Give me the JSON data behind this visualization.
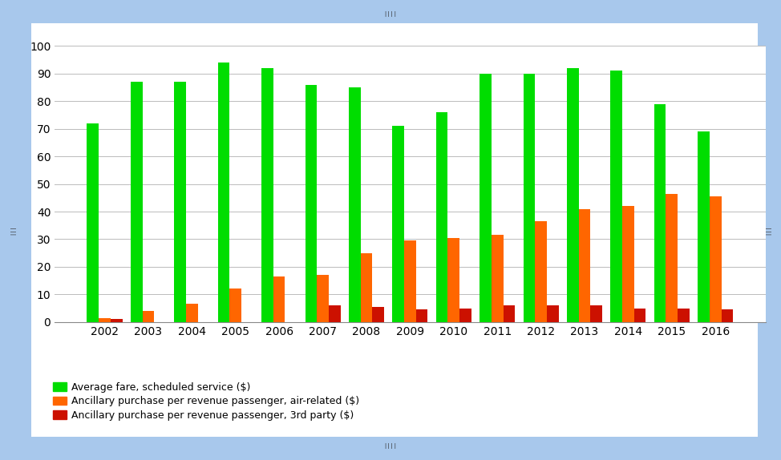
{
  "years": [
    2002,
    2003,
    2004,
    2005,
    2006,
    2007,
    2008,
    2009,
    2010,
    2011,
    2012,
    2013,
    2014,
    2015,
    2016
  ],
  "avg_fare": [
    72,
    87,
    87,
    94,
    92,
    86,
    85,
    71,
    76,
    90,
    90,
    92,
    91,
    79,
    69
  ],
  "air_related": [
    1.5,
    4,
    6.5,
    12,
    16.5,
    17,
    25,
    29.5,
    30.5,
    31.5,
    36.5,
    41,
    42,
    46.5,
    45.5
  ],
  "third_party": [
    1,
    0,
    0,
    0,
    0,
    6,
    5.5,
    4.5,
    5,
    6,
    6,
    6,
    5,
    5,
    4.5
  ],
  "green_color": "#00DD00",
  "orange_color": "#FF6600",
  "red_color": "#CC1100",
  "bg_outer": "#A8C8EC",
  "bg_inner": "#FFFFFF",
  "ylim": [
    0,
    100
  ],
  "yticks": [
    0,
    10,
    20,
    30,
    40,
    50,
    60,
    70,
    80,
    90,
    100
  ],
  "legend_labels": [
    "Average fare, scheduled service ($)",
    "Ancillary purchase per revenue passenger, air-related ($)",
    "Ancillary purchase per revenue passenger, 3rd party ($)"
  ],
  "bar_width": 0.27,
  "grid_color": "#BBBBBB",
  "tick_fontsize": 10,
  "legend_fontsize": 9
}
